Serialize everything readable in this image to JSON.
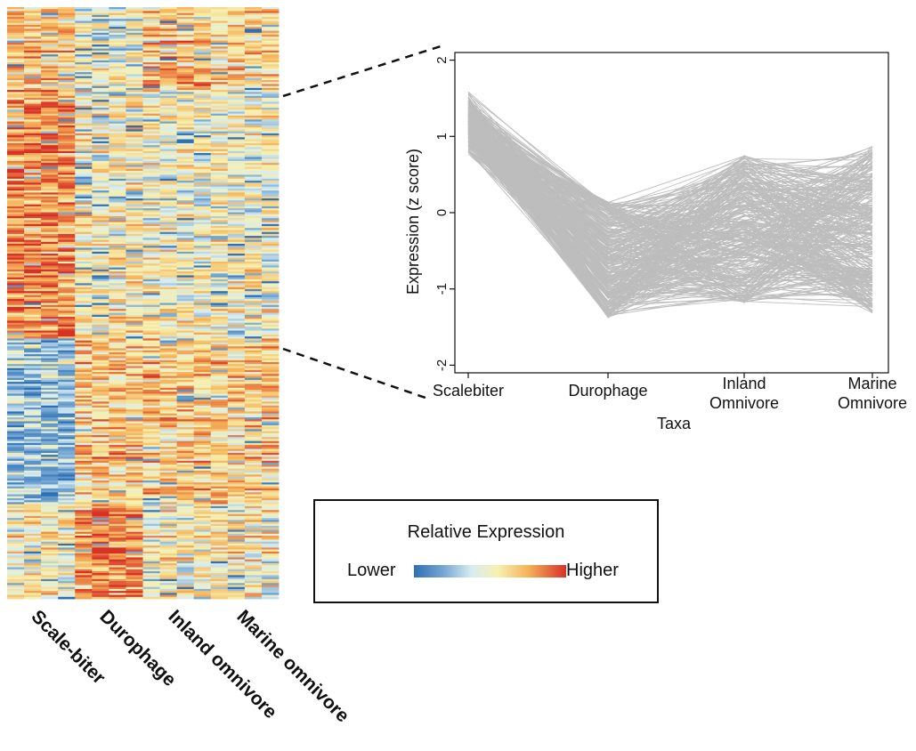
{
  "heatmap": {
    "group_labels": [
      "Scale-biter",
      "Durophage",
      "Inland omnivore",
      "Marine omnivore"
    ],
    "columns_per_group": [
      4,
      4,
      4,
      4
    ],
    "colors": {
      "low": "#2f6fb5",
      "mid": "#f6f1b0",
      "high": "#d73027"
    }
  },
  "legend": {
    "title": "Relative Expression",
    "low_label": "Lower",
    "high_label": "Higher"
  },
  "chart_data": {
    "type": "line",
    "xlabel": "Taxa",
    "ylabel": "Expression (z score)",
    "categories": [
      "Scalebiter",
      "Durophage",
      "Inland Omnivore",
      "Marine Omnivore"
    ],
    "category_lines": [
      [
        "Scalebiter"
      ],
      [
        "Durophage"
      ],
      [
        "Inland",
        "Omnivore"
      ],
      [
        "Marine",
        "Omnivore"
      ]
    ],
    "ylim": [
      -2.1,
      2.1
    ],
    "yticks": [
      -2,
      -1,
      0,
      1,
      2
    ],
    "ytick_labels": [
      "-2",
      "-1",
      "0",
      "1",
      "2"
    ],
    "line_color": "#bdbdbd",
    "grid": false,
    "series_ranges": {
      "Scalebiter": [
        0.75,
        1.65
      ],
      "Durophage": [
        -1.55,
        0.15
      ],
      "Inland Omnivore": [
        -1.4,
        0.75
      ],
      "Marine Omnivore": [
        -1.35,
        0.9
      ]
    },
    "series_count": 320
  }
}
